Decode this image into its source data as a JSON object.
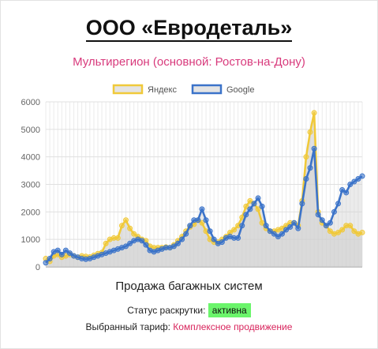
{
  "header": {
    "title": "ООО «Евродеталь»",
    "subtitle": "Мультирегион (основной: Ростов-на-Дону)"
  },
  "footer": {
    "status_label": "Статус раскрутки:",
    "status_value": "активна",
    "tariff_label": "Выбранный тариф:",
    "tariff_value": "Комплексное продвижение"
  },
  "colors": {
    "yandex": "#f0c93a",
    "google": "#3b73c9"
  },
  "chart_data": {
    "type": "area",
    "xlabel": "Продажа багажных систем",
    "ylim": [
      0,
      6000
    ],
    "yticks": [
      0,
      1000,
      2000,
      3000,
      4000,
      5000,
      6000
    ],
    "grid": true,
    "legend_position": "top",
    "series": [
      {
        "name": "Яндекс",
        "values": [
          300,
          200,
          400,
          450,
          350,
          400,
          450,
          400,
          350,
          400,
          380,
          360,
          420,
          480,
          520,
          850,
          1000,
          1050,
          1050,
          1500,
          1700,
          1400,
          1200,
          1100,
          1000,
          950,
          750,
          700,
          700,
          700,
          720,
          700,
          800,
          950,
          1100,
          1300,
          1450,
          1550,
          1700,
          1600,
          1300,
          1000,
          900,
          900,
          1000,
          1100,
          1250,
          1350,
          1500,
          1800,
          2200,
          2400,
          2300,
          2100,
          1600,
          1400,
          1300,
          1300,
          1350,
          1400,
          1500,
          1600,
          1600,
          1500,
          2400,
          4000,
          4900,
          5600,
          2000,
          1600,
          1500,
          1300,
          1200,
          1250,
          1350,
          1500,
          1500,
          1300,
          1200,
          1250
        ]
      },
      {
        "name": "Google",
        "values": [
          150,
          300,
          550,
          600,
          450,
          600,
          500,
          400,
          350,
          300,
          280,
          300,
          350,
          400,
          450,
          500,
          550,
          600,
          650,
          700,
          750,
          850,
          950,
          1000,
          950,
          800,
          600,
          550,
          600,
          650,
          700,
          700,
          750,
          850,
          1000,
          1200,
          1500,
          1700,
          1700,
          2100,
          1700,
          1300,
          1000,
          850,
          900,
          1050,
          1100,
          1050,
          1050,
          1500,
          1900,
          2100,
          2300,
          2500,
          2200,
          1500,
          1300,
          1200,
          1100,
          1200,
          1350,
          1450,
          1600,
          1400,
          2300,
          3200,
          3600,
          4300,
          1900,
          1700,
          1500,
          1600,
          2000,
          2300,
          2800,
          2700,
          3000,
          3100,
          3200,
          3300
        ]
      }
    ]
  }
}
